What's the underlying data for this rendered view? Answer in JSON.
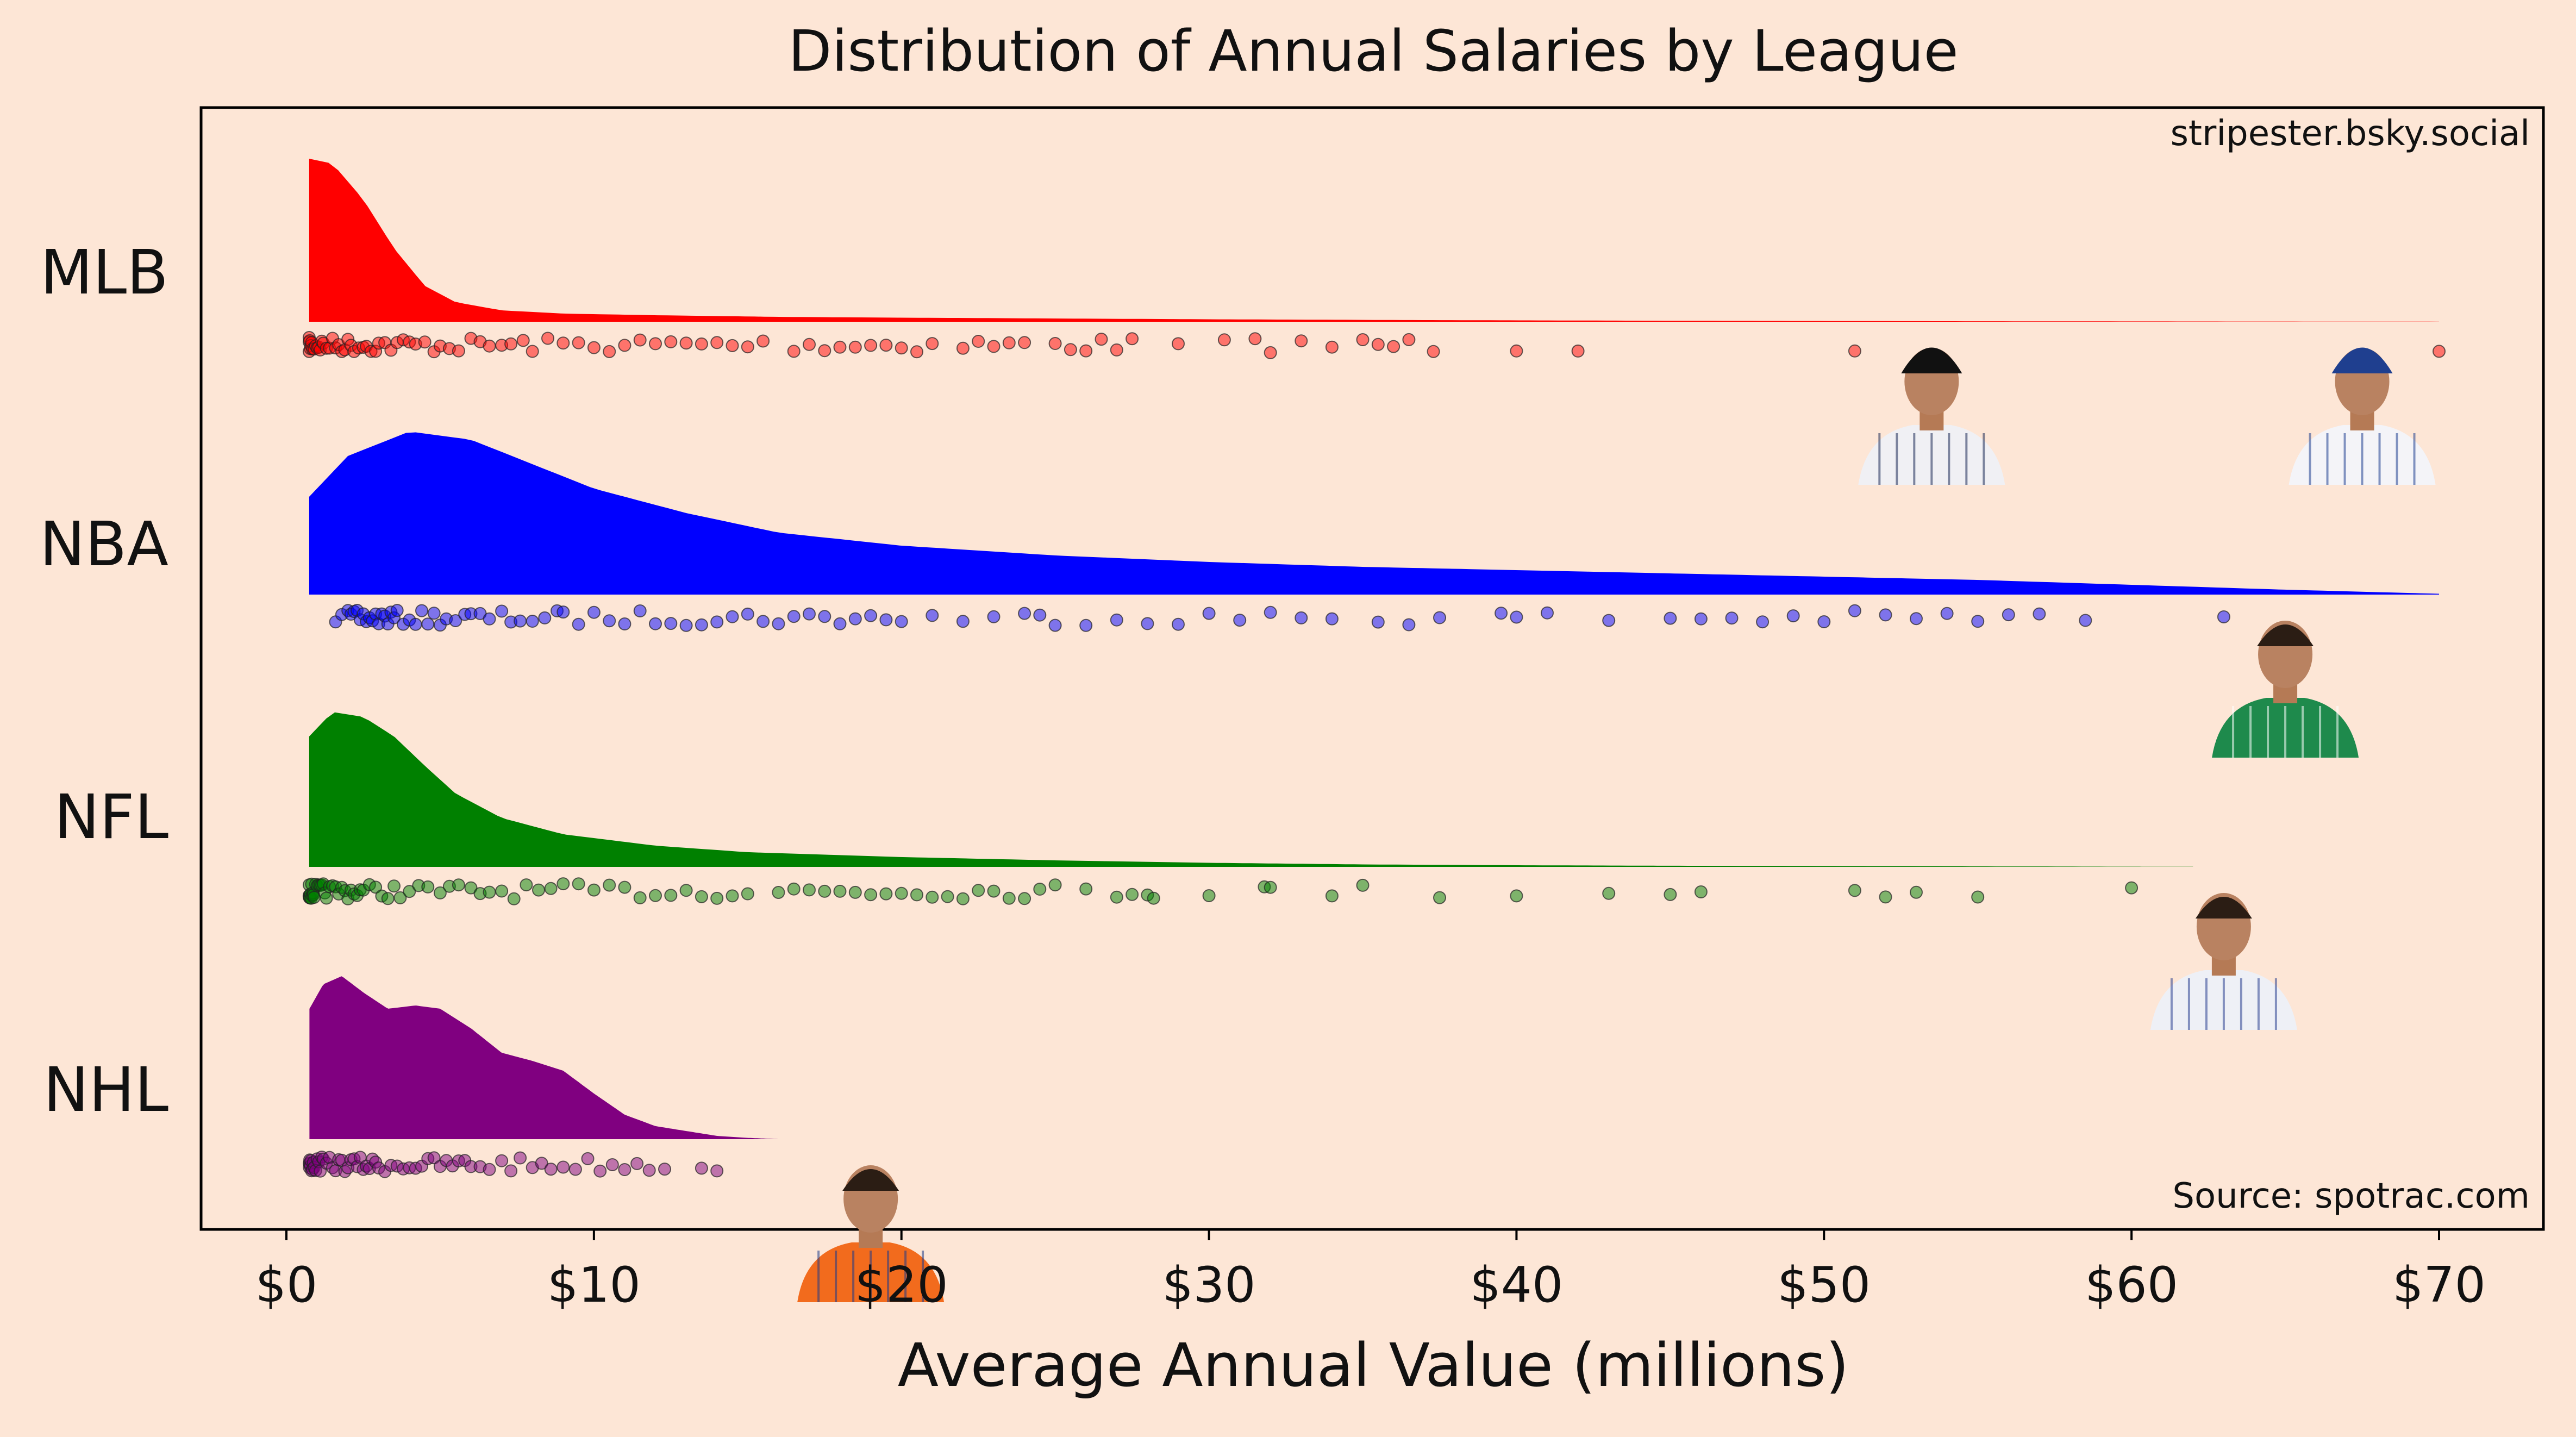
{
  "chart_data": {
    "type": "raincloud",
    "title": "Distribution of Annual Salaries by League",
    "xlabel": "Average Annual Value (millions)",
    "ylabel": "",
    "xlim": [
      -2.5,
      73.5
    ],
    "xticks": [
      0,
      10,
      20,
      30,
      40,
      50,
      60,
      70
    ],
    "xtick_labels": [
      "$0",
      "$10",
      "$20",
      "$30",
      "$40",
      "$50",
      "$60",
      "$70"
    ],
    "watermark": "stripester.bsky.social",
    "source": "Source:  spotrac.com",
    "grid": false,
    "series": [
      {
        "name": "MLB",
        "color": "#ff0000",
        "curve_max": 70,
        "density": [
          [
            0.74,
            1.0
          ],
          [
            1.5,
            0.97
          ],
          [
            2.5,
            0.75
          ],
          [
            3.5,
            0.45
          ],
          [
            4.5,
            0.22
          ],
          [
            5.5,
            0.12
          ],
          [
            7,
            0.07
          ],
          [
            9,
            0.05
          ],
          [
            12,
            0.04
          ],
          [
            16,
            0.03
          ],
          [
            20,
            0.025
          ],
          [
            25,
            0.02
          ],
          [
            30,
            0.015
          ],
          [
            37,
            0.01
          ],
          [
            45,
            0.006
          ],
          [
            55,
            0.003
          ],
          [
            63,
            0.0015
          ],
          [
            70,
            0.0005
          ]
        ],
        "values": [
          0.74,
          0.74,
          0.74,
          0.76,
          0.78,
          0.8,
          0.82,
          0.85,
          0.9,
          0.95,
          1.0,
          1.05,
          1.1,
          1.15,
          1.2,
          1.3,
          1.4,
          1.5,
          1.6,
          1.7,
          1.8,
          1.9,
          2.0,
          2.1,
          2.2,
          2.35,
          2.5,
          2.6,
          2.75,
          2.9,
          3.0,
          3.2,
          3.4,
          3.6,
          3.8,
          4.0,
          4.2,
          4.5,
          4.8,
          5.0,
          5.3,
          5.6,
          6.0,
          6.3,
          6.6,
          7.0,
          7.3,
          7.7,
          8.0,
          8.5,
          9.0,
          9.5,
          10.0,
          10.5,
          11.0,
          11.5,
          12.0,
          12.5,
          13.0,
          13.5,
          14.0,
          14.5,
          15.0,
          15.5,
          16.5,
          17.0,
          17.5,
          18.0,
          18.5,
          19.0,
          19.5,
          20.0,
          20.5,
          21.0,
          22.0,
          22.5,
          23.0,
          23.5,
          24.0,
          25.0,
          25.5,
          26.0,
          26.5,
          27.0,
          27.5,
          29.0,
          30.5,
          31.5,
          32.0,
          33.0,
          34.0,
          35.0,
          35.5,
          36.0,
          36.5,
          37.3,
          40.0,
          42.0,
          51.0,
          70.0
        ]
      },
      {
        "name": "NBA",
        "color": "#0000ff",
        "curve_max": 70,
        "density": [
          [
            0.74,
            0.6
          ],
          [
            2,
            0.85
          ],
          [
            4,
            1.0
          ],
          [
            6,
            0.95
          ],
          [
            8,
            0.8
          ],
          [
            10,
            0.65
          ],
          [
            13,
            0.5
          ],
          [
            16,
            0.38
          ],
          [
            20,
            0.3
          ],
          [
            25,
            0.24
          ],
          [
            30,
            0.2
          ],
          [
            35,
            0.17
          ],
          [
            40,
            0.15
          ],
          [
            45,
            0.13
          ],
          [
            50,
            0.11
          ],
          [
            55,
            0.09
          ],
          [
            60,
            0.06
          ],
          [
            65,
            0.03
          ],
          [
            70,
            0.005
          ]
        ],
        "values": [
          1.6,
          1.8,
          2.0,
          2.1,
          2.2,
          2.3,
          2.4,
          2.5,
          2.6,
          2.7,
          2.8,
          2.9,
          3.0,
          3.1,
          3.2,
          3.3,
          3.4,
          3.5,
          3.6,
          3.8,
          4.0,
          4.2,
          4.4,
          4.6,
          4.8,
          5.0,
          5.2,
          5.5,
          5.8,
          6.0,
          6.3,
          6.6,
          7.0,
          7.3,
          7.6,
          8.0,
          8.4,
          8.8,
          9.0,
          9.5,
          10.0,
          10.5,
          11.0,
          11.5,
          12.0,
          12.5,
          13.0,
          13.5,
          14.0,
          14.5,
          15.0,
          15.5,
          16.0,
          16.5,
          17.0,
          17.5,
          18.0,
          18.5,
          19.0,
          19.5,
          20.0,
          21.0,
          22.0,
          23.0,
          24.0,
          24.5,
          25.0,
          26.0,
          27.0,
          28.0,
          29.0,
          30.0,
          31.0,
          32.0,
          33.0,
          34.0,
          35.5,
          36.5,
          37.5,
          39.5,
          40.0,
          41.0,
          43.0,
          45.0,
          46.0,
          47.0,
          48.0,
          49.0,
          50.0,
          51.0,
          52.0,
          53.0,
          54.0,
          55.0,
          56.0,
          57.0,
          58.5,
          63.0
        ]
      },
      {
        "name": "NFL",
        "color": "#008000",
        "curve_max": 62,
        "density": [
          [
            0.74,
            0.8
          ],
          [
            1.5,
            0.95
          ],
          [
            2.5,
            0.92
          ],
          [
            3.5,
            0.8
          ],
          [
            4.5,
            0.62
          ],
          [
            5.5,
            0.45
          ],
          [
            7,
            0.3
          ],
          [
            9,
            0.2
          ],
          [
            12,
            0.13
          ],
          [
            15,
            0.09
          ],
          [
            20,
            0.06
          ],
          [
            25,
            0.04
          ],
          [
            30,
            0.025
          ],
          [
            35,
            0.015
          ],
          [
            40,
            0.01
          ],
          [
            45,
            0.007
          ],
          [
            50,
            0.005
          ],
          [
            55,
            0.003
          ],
          [
            62,
            0.0005
          ]
        ],
        "values": [
          0.74,
          0.74,
          0.74,
          0.75,
          0.76,
          0.78,
          0.8,
          0.82,
          0.84,
          0.86,
          0.88,
          0.9,
          0.95,
          1.0,
          1.05,
          1.1,
          1.15,
          1.2,
          1.25,
          1.3,
          1.4,
          1.5,
          1.6,
          1.7,
          1.8,
          1.9,
          2.0,
          2.1,
          2.2,
          2.3,
          2.4,
          2.5,
          2.7,
          2.9,
          3.1,
          3.3,
          3.5,
          3.7,
          4.0,
          4.3,
          4.6,
          5.0,
          5.3,
          5.6,
          6.0,
          6.3,
          6.6,
          7.0,
          7.4,
          7.8,
          8.2,
          8.6,
          9.0,
          9.5,
          10.0,
          10.5,
          11.0,
          11.5,
          12.0,
          12.5,
          13.0,
          13.5,
          14.0,
          14.5,
          15.0,
          16.0,
          16.5,
          17.0,
          17.5,
          18.0,
          18.5,
          19.0,
          19.5,
          20.0,
          20.5,
          21.0,
          21.5,
          22.0,
          22.5,
          23.0,
          23.5,
          24.0,
          24.5,
          25.0,
          26.0,
          27.0,
          27.5,
          28.0,
          28.2,
          30.0,
          31.8,
          32.0,
          34.0,
          35.0,
          37.5,
          40.0,
          43.0,
          45.0,
          46.0,
          51.0,
          52.0,
          53.0,
          55.0,
          60.0
        ]
      },
      {
        "name": "NHL",
        "color": "#800080",
        "curve_max": 16,
        "density": [
          [
            0.75,
            0.8
          ],
          [
            1.2,
            0.95
          ],
          [
            1.8,
            1.0
          ],
          [
            2.5,
            0.9
          ],
          [
            3.3,
            0.8
          ],
          [
            4.2,
            0.82
          ],
          [
            5,
            0.8
          ],
          [
            6,
            0.68
          ],
          [
            7,
            0.53
          ],
          [
            8,
            0.48
          ],
          [
            9,
            0.42
          ],
          [
            10,
            0.28
          ],
          [
            11,
            0.15
          ],
          [
            12,
            0.08
          ],
          [
            13,
            0.05
          ],
          [
            14,
            0.02
          ],
          [
            15,
            0.008
          ],
          [
            16,
            0.0
          ]
        ],
        "values": [
          0.75,
          0.75,
          0.75,
          0.76,
          0.78,
          0.8,
          0.82,
          0.85,
          0.88,
          0.9,
          0.95,
          1.0,
          1.05,
          1.1,
          1.15,
          1.2,
          1.3,
          1.4,
          1.5,
          1.6,
          1.7,
          1.8,
          1.9,
          2.0,
          2.1,
          2.2,
          2.3,
          2.4,
          2.5,
          2.6,
          2.7,
          2.8,
          2.9,
          3.0,
          3.2,
          3.4,
          3.6,
          3.8,
          4.0,
          4.2,
          4.4,
          4.6,
          4.8,
          5.0,
          5.2,
          5.4,
          5.6,
          5.8,
          6.0,
          6.3,
          6.6,
          7.0,
          7.3,
          7.6,
          8.0,
          8.3,
          8.6,
          9.0,
          9.4,
          9.8,
          10.2,
          10.6,
          11.0,
          11.4,
          11.8,
          12.3,
          13.5,
          14.0
        ]
      }
    ],
    "player_photos": [
      {
        "name": "mlb-player-yankees-headshot",
        "x": 53.5,
        "league": "MLB",
        "cap_color": "#111111",
        "jersey_color": "#f0f0f4",
        "stripe": "#1b2a56"
      },
      {
        "name": "mlb-player-dodgers-headshot",
        "x": 67.5,
        "league": "MLB",
        "cap_color": "#1f3f8f",
        "jersey_color": "#f4f4f8",
        "stripe": "#1f3f8f"
      },
      {
        "name": "nba-player-celtics-headshot",
        "x": 65.0,
        "league": "NBA",
        "cap_color": "",
        "jersey_color": "#1e8a4c",
        "stripe": "#ffffff"
      },
      {
        "name": "nfl-player-cowboys-headshot",
        "x": 63.0,
        "league": "NFL",
        "cap_color": "",
        "jersey_color": "#eef0f6",
        "stripe": "#2a3f8f"
      },
      {
        "name": "nhl-player-oilers-headshot",
        "x": 19.0,
        "league": "NHL",
        "cap_color": "",
        "jersey_color": "#f26b1d",
        "stripe": "#1b3b8a"
      }
    ]
  }
}
